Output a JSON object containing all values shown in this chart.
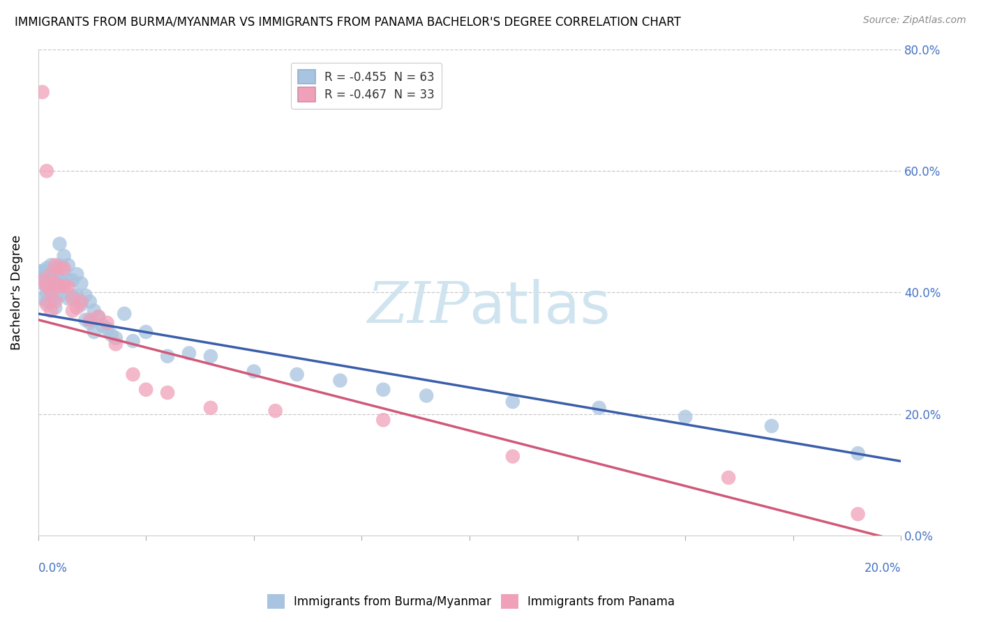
{
  "title": "IMMIGRANTS FROM BURMA/MYANMAR VS IMMIGRANTS FROM PANAMA BACHELOR'S DEGREE CORRELATION CHART",
  "source": "Source: ZipAtlas.com",
  "ylabel": "Bachelor's Degree",
  "legend_entry1": "R = -0.455  N = 63",
  "legend_entry2": "R = -0.467  N = 33",
  "series1_label": "Immigrants from Burma/Myanmar",
  "series2_label": "Immigrants from Panama",
  "series1_color": "#a8c4e0",
  "series2_color": "#f0a0b8",
  "line1_color": "#3a5eaa",
  "line2_color": "#d05878",
  "watermark_color": "#d0e4f0",
  "background_color": "#ffffff",
  "xlim": [
    0.0,
    0.2
  ],
  "ylim": [
    0.0,
    0.8
  ],
  "series1_x": [
    0.0,
    0.001,
    0.001,
    0.001,
    0.001,
    0.002,
    0.002,
    0.002,
    0.002,
    0.002,
    0.003,
    0.003,
    0.003,
    0.003,
    0.003,
    0.004,
    0.004,
    0.004,
    0.004,
    0.004,
    0.005,
    0.005,
    0.005,
    0.005,
    0.006,
    0.006,
    0.006,
    0.007,
    0.007,
    0.007,
    0.008,
    0.008,
    0.009,
    0.009,
    0.01,
    0.01,
    0.011,
    0.011,
    0.012,
    0.012,
    0.013,
    0.013,
    0.014,
    0.015,
    0.016,
    0.017,
    0.018,
    0.02,
    0.022,
    0.025,
    0.03,
    0.035,
    0.04,
    0.05,
    0.06,
    0.07,
    0.08,
    0.09,
    0.11,
    0.13,
    0.15,
    0.17,
    0.19
  ],
  "series1_y": [
    0.435,
    0.435,
    0.425,
    0.415,
    0.39,
    0.44,
    0.425,
    0.415,
    0.4,
    0.385,
    0.445,
    0.43,
    0.415,
    0.4,
    0.385,
    0.44,
    0.43,
    0.415,
    0.395,
    0.375,
    0.48,
    0.445,
    0.42,
    0.395,
    0.46,
    0.435,
    0.415,
    0.445,
    0.42,
    0.39,
    0.42,
    0.395,
    0.43,
    0.395,
    0.415,
    0.38,
    0.395,
    0.355,
    0.385,
    0.35,
    0.37,
    0.335,
    0.36,
    0.345,
    0.34,
    0.33,
    0.325,
    0.365,
    0.32,
    0.335,
    0.295,
    0.3,
    0.295,
    0.27,
    0.265,
    0.255,
    0.24,
    0.23,
    0.22,
    0.21,
    0.195,
    0.18,
    0.135
  ],
  "series2_x": [
    0.001,
    0.001,
    0.002,
    0.002,
    0.002,
    0.003,
    0.003,
    0.003,
    0.004,
    0.004,
    0.004,
    0.005,
    0.005,
    0.006,
    0.006,
    0.007,
    0.008,
    0.008,
    0.009,
    0.01,
    0.012,
    0.014,
    0.016,
    0.018,
    0.022,
    0.025,
    0.03,
    0.04,
    0.055,
    0.08,
    0.11,
    0.16,
    0.19
  ],
  "series2_y": [
    0.73,
    0.42,
    0.6,
    0.41,
    0.38,
    0.43,
    0.4,
    0.37,
    0.445,
    0.415,
    0.385,
    0.44,
    0.41,
    0.44,
    0.41,
    0.41,
    0.39,
    0.37,
    0.375,
    0.385,
    0.355,
    0.36,
    0.35,
    0.315,
    0.265,
    0.24,
    0.235,
    0.21,
    0.205,
    0.19,
    0.13,
    0.095,
    0.035
  ],
  "line1_x0": 0.0,
  "line1_y0": 0.365,
  "line1_x1": 0.2,
  "line1_y1": 0.122,
  "line2_x0": 0.0,
  "line2_y0": 0.355,
  "line2_x1": 0.2,
  "line2_y1": -0.01
}
